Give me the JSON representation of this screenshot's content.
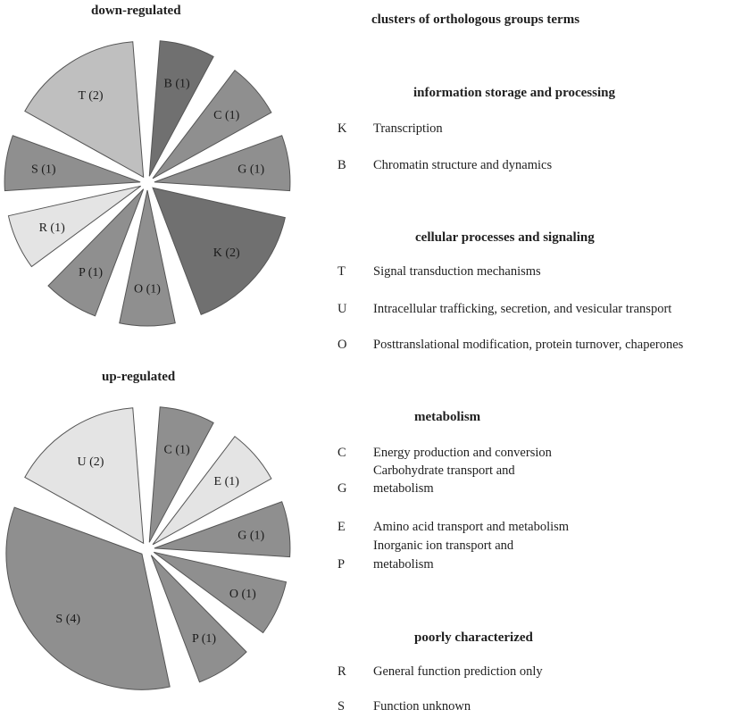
{
  "colors": {
    "dark": "#707070",
    "mid": "#8f8f8f",
    "light": "#bfbfbf",
    "pale": "#e4e4e4",
    "stroke": "#555555"
  },
  "chart_data": [
    {
      "type": "pie",
      "title": "down-regulated",
      "exploded": true,
      "slices": [
        {
          "code": "B",
          "value": 1,
          "label": "B (1)",
          "shade": "dark"
        },
        {
          "code": "C",
          "value": 1,
          "label": "C (1)",
          "shade": "mid"
        },
        {
          "code": "G",
          "value": 1,
          "label": "G (1)",
          "shade": "mid"
        },
        {
          "code": "K",
          "value": 2,
          "label": "K (2)",
          "shade": "dark"
        },
        {
          "code": "O",
          "value": 1,
          "label": "O (1)",
          "shade": "mid"
        },
        {
          "code": "P",
          "value": 1,
          "label": "P (1)",
          "shade": "mid"
        },
        {
          "code": "R",
          "value": 1,
          "label": "R (1)",
          "shade": "pale"
        },
        {
          "code": "S",
          "value": 1,
          "label": "S (1)",
          "shade": "mid"
        },
        {
          "code": "T",
          "value": 2,
          "label": "T (2)",
          "shade": "light"
        }
      ]
    },
    {
      "type": "pie",
      "title": "up-regulated",
      "exploded": true,
      "slices": [
        {
          "code": "C",
          "value": 1,
          "label": "C (1)",
          "shade": "mid"
        },
        {
          "code": "E",
          "value": 1,
          "label": "E (1)",
          "shade": "pale"
        },
        {
          "code": "G",
          "value": 1,
          "label": "G (1)",
          "shade": "mid"
        },
        {
          "code": "O",
          "value": 1,
          "label": "O (1)",
          "shade": "mid"
        },
        {
          "code": "P",
          "value": 1,
          "label": "P (1)",
          "shade": "mid"
        },
        {
          "code": "S",
          "value": 4,
          "label": "S (4)",
          "shade": "mid"
        },
        {
          "code": "U",
          "value": 2,
          "label": "U (2)",
          "shade": "pale"
        }
      ]
    }
  ],
  "legend": {
    "title": "clusters of orthologous groups terms",
    "sections": [
      {
        "header": "information storage and processing",
        "items": [
          {
            "code": "K",
            "text": "Transcription"
          },
          {
            "code": "B",
            "text": "Chromatin structure and dynamics"
          }
        ]
      },
      {
        "header": "cellular processes and signaling",
        "items": [
          {
            "code": "T",
            "text": "Signal transduction mechanisms"
          },
          {
            "code": "U",
            "text": "Intracellular trafficking, secretion, and vesicular transport"
          },
          {
            "code": "O",
            "text": "Posttranslational modification, protein turnover, chaperones"
          }
        ]
      },
      {
        "header": "metabolism",
        "items": [
          {
            "code": "C",
            "text": "Energy production and conversion"
          },
          {
            "code": "G",
            "text": "Carbohydrate transport and",
            "text2": "metabolism"
          },
          {
            "code": "E",
            "text": "Amino acid transport and metabolism"
          },
          {
            "code": "P",
            "text": "Inorganic ion transport and",
            "text2": "metabolism"
          }
        ]
      },
      {
        "header": "poorly characterized",
        "items": [
          {
            "code": "R",
            "text": "General function prediction only"
          },
          {
            "code": "S",
            "text": "Function unknown"
          }
        ]
      }
    ]
  }
}
